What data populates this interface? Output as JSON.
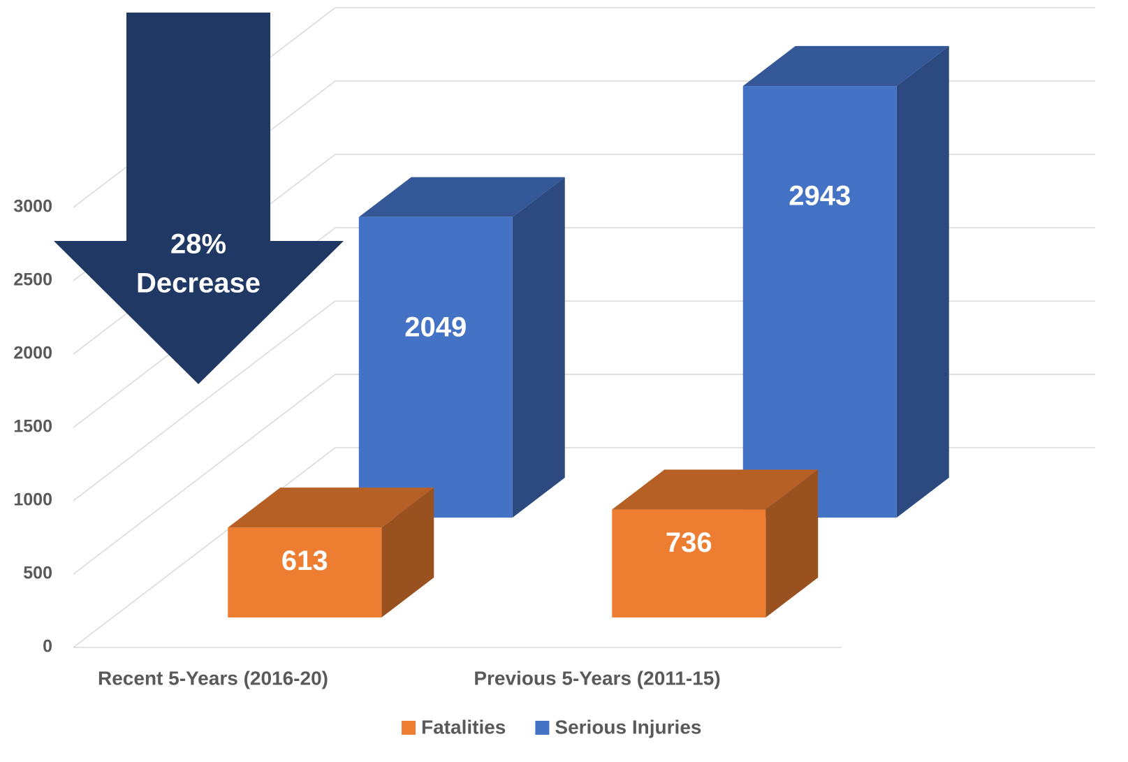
{
  "chart_data": {
    "type": "bar3d",
    "categories": [
      "Recent 5-Years (2016-20)",
      "Previous 5-Years (2011-15)"
    ],
    "series": [
      {
        "name": "Fatalities",
        "color": "#ed7d31",
        "values": [
          613,
          736
        ]
      },
      {
        "name": "Serious Injuries",
        "color": "#4472c4",
        "values": [
          2049,
          2943
        ]
      }
    ],
    "ylim": [
      0,
      3000
    ],
    "yticks": [
      0,
      500,
      1000,
      1500,
      2000,
      2500,
      3000
    ],
    "grid": true,
    "legend": "bottom",
    "annotation": [
      "28%",
      "Decrease"
    ],
    "annotation_color": "#203864"
  }
}
